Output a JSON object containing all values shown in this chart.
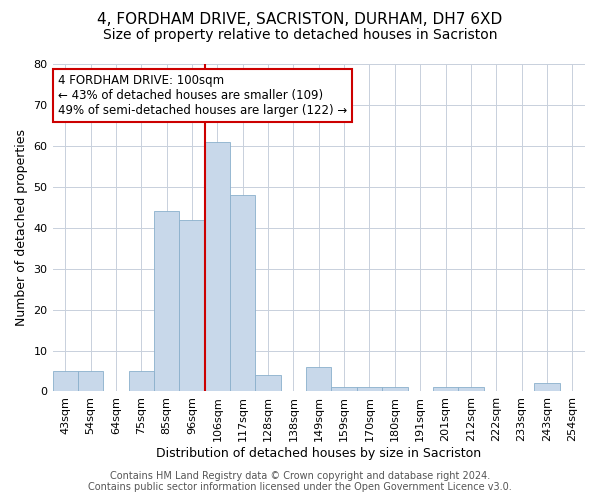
{
  "title": "4, FORDHAM DRIVE, SACRISTON, DURHAM, DH7 6XD",
  "subtitle": "Size of property relative to detached houses in Sacriston",
  "xlabel": "Distribution of detached houses by size in Sacriston",
  "ylabel": "Number of detached properties",
  "bin_labels": [
    "43sqm",
    "54sqm",
    "64sqm",
    "75sqm",
    "85sqm",
    "96sqm",
    "106sqm",
    "117sqm",
    "128sqm",
    "138sqm",
    "149sqm",
    "159sqm",
    "170sqm",
    "180sqm",
    "191sqm",
    "201sqm",
    "212sqm",
    "222sqm",
    "233sqm",
    "243sqm",
    "254sqm"
  ],
  "bar_heights": [
    5,
    5,
    0,
    5,
    44,
    42,
    61,
    48,
    4,
    0,
    6,
    1,
    1,
    1,
    0,
    1,
    1,
    0,
    0,
    2,
    0
  ],
  "bar_color": "#c8d8ea",
  "bar_edge_color": "#8ab0cc",
  "vline_x": 5.5,
  "vline_color": "#cc0000",
  "annotation_text": "4 FORDHAM DRIVE: 100sqm\n← 43% of detached houses are smaller (109)\n49% of semi-detached houses are larger (122) →",
  "annotation_box_color": "white",
  "annotation_box_edge": "#cc0000",
  "ylim": [
    0,
    80
  ],
  "yticks": [
    0,
    10,
    20,
    30,
    40,
    50,
    60,
    70,
    80
  ],
  "footer1": "Contains HM Land Registry data © Crown copyright and database right 2024.",
  "footer2": "Contains public sector information licensed under the Open Government Licence v3.0.",
  "background_color": "white",
  "plot_background": "white",
  "grid_color": "#c8d0dc",
  "title_fontsize": 11,
  "subtitle_fontsize": 10,
  "axis_label_fontsize": 9,
  "tick_fontsize": 8,
  "footer_fontsize": 7,
  "ann_fontsize": 8.5
}
